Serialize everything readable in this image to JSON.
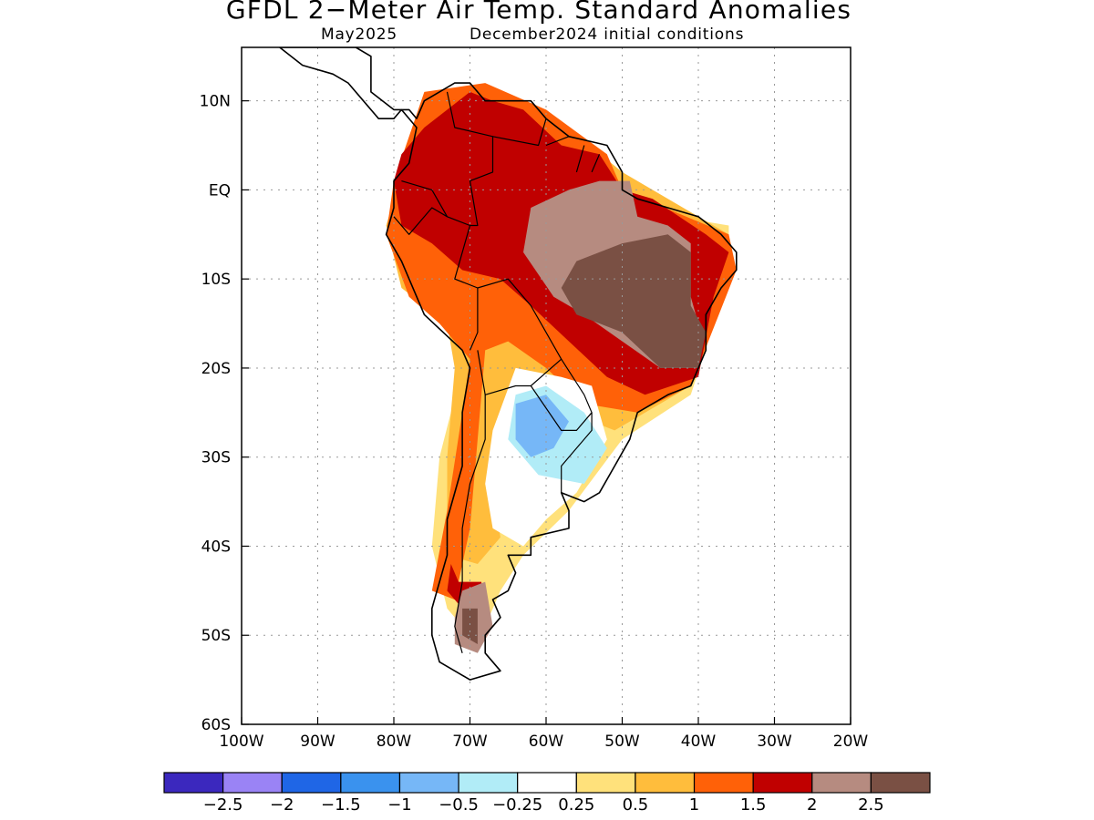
{
  "title": "GFDL 2−Meter Air Temp. Standard Anomalies",
  "subtitle_date": "May2025",
  "subtitle_ic": "December2024 initial conditions",
  "lon_ticks": [
    "100W",
    "90W",
    "80W",
    "70W",
    "60W",
    "50W",
    "40W",
    "30W",
    "20W"
  ],
  "lat_ticks": [
    "10N",
    "EQ",
    "10S",
    "20S",
    "30S",
    "40S",
    "50S",
    "60S"
  ],
  "colorbar": {
    "colors": [
      "#3b28be",
      "#9a83f5",
      "#1f66e6",
      "#3a92ee",
      "#76b7f7",
      "#b1ecf7",
      "#ffffff",
      "#ffe17b",
      "#ffbd3c",
      "#ff6108",
      "#c00000",
      "#b68b80",
      "#7a5044"
    ],
    "labels": [
      "−2.5",
      "−2",
      "−1.5",
      "−1",
      "−0.5",
      "−0.25",
      "0.25",
      "0.5",
      "1",
      "1.5",
      "2",
      "2.5"
    ]
  },
  "map": {
    "extent": {
      "lon_min": -100,
      "lon_max": -20,
      "lat_min": -60,
      "lat_max": 16
    },
    "anomaly_regions": [
      {
        "level": "0.5",
        "color": "#ffe17b",
        "points": [
          [
            -75,
            5
          ],
          [
            -60,
            8
          ],
          [
            -52,
            4
          ],
          [
            -50,
            -2
          ],
          [
            -36,
            -4
          ],
          [
            -36,
            -10
          ],
          [
            -41,
            -23
          ],
          [
            -50,
            -28
          ],
          [
            -57,
            -36
          ],
          [
            -63,
            -41
          ],
          [
            -66,
            -45
          ],
          [
            -69,
            -51
          ],
          [
            -73,
            -47
          ],
          [
            -75,
            -40
          ],
          [
            -74,
            -30
          ],
          [
            -71,
            -20
          ],
          [
            -73,
            -14
          ],
          [
            -78,
            -12
          ],
          [
            -81,
            -5
          ]
        ]
      },
      {
        "level": "1",
        "color": "#ffbd3c",
        "points": [
          [
            -76,
            9
          ],
          [
            -60,
            9
          ],
          [
            -50,
            2
          ],
          [
            -36,
            -5
          ],
          [
            -36,
            -10
          ],
          [
            -41,
            -22
          ],
          [
            -51,
            -27
          ],
          [
            -57,
            -25
          ],
          [
            -63,
            -22
          ],
          [
            -66,
            -28
          ],
          [
            -67,
            -34
          ],
          [
            -66,
            -39
          ],
          [
            -69,
            -42
          ],
          [
            -73,
            -41
          ],
          [
            -73,
            -30
          ],
          [
            -72,
            -20
          ],
          [
            -73,
            -15
          ],
          [
            -79,
            -11
          ],
          [
            -81,
            -4
          ],
          [
            -79,
            2
          ]
        ]
      },
      {
        "level": "1.5",
        "color": "#ff6108",
        "points": [
          [
            -76,
            11
          ],
          [
            -68,
            12
          ],
          [
            -60,
            9
          ],
          [
            -52,
            4
          ],
          [
            -50,
            0
          ],
          [
            -36,
            -5
          ],
          [
            -35,
            -9
          ],
          [
            -41,
            -22
          ],
          [
            -48,
            -25
          ],
          [
            -55,
            -24
          ],
          [
            -60,
            -20
          ],
          [
            -65,
            -17
          ],
          [
            -68,
            -18
          ],
          [
            -69,
            -28
          ],
          [
            -70,
            -38
          ],
          [
            -72,
            -46
          ],
          [
            -75,
            -45
          ],
          [
            -73,
            -36
          ],
          [
            -71,
            -25
          ],
          [
            -70,
            -19
          ],
          [
            -74,
            -15
          ],
          [
            -78,
            -12
          ],
          [
            -81,
            -5
          ],
          [
            -80,
            1
          ]
        ]
      },
      {
        "level": "2",
        "color": "#c00000",
        "points": [
          [
            -76,
            7
          ],
          [
            -70,
            11
          ],
          [
            -67,
            10
          ],
          [
            -63,
            9
          ],
          [
            -58,
            5
          ],
          [
            -53,
            4
          ],
          [
            -50,
            0
          ],
          [
            -46,
            -1
          ],
          [
            -39,
            -5
          ],
          [
            -36,
            -7
          ],
          [
            -38,
            -12
          ],
          [
            -40,
            -21
          ],
          [
            -47,
            -23
          ],
          [
            -52,
            -21
          ],
          [
            -57,
            -17
          ],
          [
            -62,
            -13
          ],
          [
            -66,
            -10
          ],
          [
            -71,
            -9
          ],
          [
            -75,
            -6
          ],
          [
            -79,
            -4
          ],
          [
            -80,
            1
          ],
          [
            -79,
            4
          ]
        ]
      },
      {
        "level": "2",
        "color": "#c00000",
        "points": [
          [
            -72.5,
            -42
          ],
          [
            -71.5,
            -44
          ],
          [
            -68.5,
            -44
          ],
          [
            -68,
            -47
          ],
          [
            -71,
            -47
          ],
          [
            -73,
            -45
          ]
        ]
      },
      {
        "level": "2.5",
        "color": "#b68b80",
        "points": [
          [
            -62,
            -2
          ],
          [
            -57,
            0
          ],
          [
            -53,
            1
          ],
          [
            -49,
            1
          ],
          [
            -48,
            -3
          ],
          [
            -44,
            -4
          ],
          [
            -41,
            -6
          ],
          [
            -41,
            -12
          ],
          [
            -40,
            -15
          ],
          [
            -40,
            -20
          ],
          [
            -45,
            -20
          ],
          [
            -50,
            -17
          ],
          [
            -55,
            -14
          ],
          [
            -59,
            -12
          ],
          [
            -63,
            -7
          ]
        ]
      },
      {
        "level": "2.5",
        "color": "#b68b80",
        "points": [
          [
            -71,
            -45
          ],
          [
            -68,
            -44
          ],
          [
            -67,
            -49
          ],
          [
            -69,
            -52
          ],
          [
            -72,
            -51
          ],
          [
            -72,
            -48
          ]
        ]
      },
      {
        "level": ">2.5",
        "color": "#7a5044",
        "points": [
          [
            -56,
            -8
          ],
          [
            -50,
            -6
          ],
          [
            -44,
            -5
          ],
          [
            -41,
            -7
          ],
          [
            -41,
            -13
          ],
          [
            -39,
            -16
          ],
          [
            -40,
            -20
          ],
          [
            -45,
            -20
          ],
          [
            -50,
            -16
          ],
          [
            -56,
            -14
          ],
          [
            -58,
            -11
          ]
        ]
      },
      {
        "level": ">2.5",
        "color": "#7a5044",
        "points": [
          [
            -71,
            -47
          ],
          [
            -69,
            -47
          ],
          [
            -69,
            -51
          ],
          [
            -71,
            -50
          ]
        ]
      },
      {
        "level": "-0.25",
        "color": "#ffffff",
        "points": [
          [
            -64,
            -20
          ],
          [
            -58,
            -21
          ],
          [
            -54,
            -22
          ],
          [
            -52,
            -28
          ],
          [
            -56,
            -34
          ],
          [
            -60,
            -37
          ],
          [
            -63,
            -40
          ],
          [
            -67,
            -38
          ],
          [
            -68,
            -33
          ],
          [
            -67,
            -27
          ]
        ]
      },
      {
        "level": "-0.5",
        "color": "#b1ecf7",
        "points": [
          [
            -64,
            -23
          ],
          [
            -60,
            -22
          ],
          [
            -55,
            -25
          ],
          [
            -52,
            -29
          ],
          [
            -55,
            -33
          ],
          [
            -61,
            -32
          ],
          [
            -65,
            -28
          ]
        ]
      },
      {
        "level": "-1",
        "color": "#76b7f7",
        "points": [
          [
            -64,
            -24
          ],
          [
            -60,
            -23
          ],
          [
            -57,
            -26
          ],
          [
            -59,
            -29
          ],
          [
            -62,
            -30
          ],
          [
            -64,
            -28
          ]
        ]
      }
    ],
    "coastline": [
      [
        -88,
        16
      ],
      [
        -85,
        16
      ],
      [
        -83,
        15
      ],
      [
        -83,
        11
      ],
      [
        -80,
        9
      ],
      [
        -78,
        9
      ],
      [
        -77,
        8
      ],
      [
        -76,
        10
      ],
      [
        -72,
        12
      ],
      [
        -70,
        12
      ],
      [
        -68,
        10
      ],
      [
        -64,
        10
      ],
      [
        -62,
        10
      ],
      [
        -60,
        8
      ],
      [
        -57,
        6
      ],
      [
        -52,
        5
      ],
      [
        -50,
        2
      ],
      [
        -50,
        0
      ],
      [
        -48,
        -1
      ],
      [
        -44,
        -2
      ],
      [
        -40,
        -3
      ],
      [
        -37,
        -5
      ],
      [
        -35,
        -7
      ],
      [
        -35,
        -9
      ],
      [
        -37,
        -11
      ],
      [
        -39,
        -14
      ],
      [
        -39,
        -18
      ],
      [
        -41,
        -22
      ],
      [
        -44,
        -23
      ],
      [
        -48,
        -25
      ],
      [
        -49,
        -28
      ],
      [
        -51,
        -31
      ],
      [
        -53,
        -34
      ],
      [
        -55,
        -35
      ],
      [
        -58,
        -34
      ],
      [
        -57,
        -36
      ],
      [
        -57,
        -38
      ],
      [
        -62,
        -39
      ],
      [
        -62,
        -41
      ],
      [
        -65,
        -41
      ],
      [
        -64,
        -43
      ],
      [
        -65,
        -45
      ],
      [
        -67,
        -46
      ],
      [
        -66,
        -48
      ],
      [
        -68,
        -50
      ],
      [
        -68,
        -52
      ],
      [
        -66,
        -54
      ],
      [
        -70,
        -55
      ],
      [
        -74,
        -53
      ],
      [
        -75,
        -50
      ],
      [
        -75,
        -47
      ],
      [
        -74,
        -44
      ],
      [
        -73,
        -41
      ],
      [
        -73,
        -37
      ],
      [
        -71,
        -31
      ],
      [
        -71,
        -25
      ],
      [
        -70,
        -20
      ],
      [
        -71,
        -18
      ],
      [
        -76,
        -14
      ],
      [
        -79,
        -8
      ],
      [
        -81,
        -5
      ],
      [
        -80,
        -2
      ],
      [
        -80,
        1
      ],
      [
        -78,
        3
      ],
      [
        -77,
        7
      ],
      [
        -79,
        9
      ],
      [
        -80,
        8
      ],
      [
        -82,
        8
      ],
      [
        -84,
        10
      ],
      [
        -86,
        12
      ],
      [
        -88,
        13
      ],
      [
        -92,
        14
      ],
      [
        -95,
        16
      ]
    ],
    "borders": [
      [
        [
          -73,
          11
        ],
        [
          -72,
          7
        ],
        [
          -67,
          6
        ],
        [
          -67,
          2
        ],
        [
          -70,
          1
        ],
        [
          -69,
          -4
        ],
        [
          -70,
          -4
        ],
        [
          -73,
          -3
        ],
        [
          -75,
          0
        ],
        [
          -79,
          1
        ]
      ],
      [
        [
          -80,
          -3
        ],
        [
          -78,
          -5
        ],
        [
          -75,
          -2
        ],
        [
          -73,
          -3
        ]
      ],
      [
        [
          -70,
          -4
        ],
        [
          -72,
          -10
        ],
        [
          -69,
          -11
        ],
        [
          -69,
          -16
        ],
        [
          -70,
          -18
        ]
      ],
      [
        [
          -67,
          6
        ],
        [
          -61,
          5
        ],
        [
          -60,
          8
        ]
      ],
      [
        [
          -60,
          5
        ],
        [
          -57,
          6
        ]
      ],
      [
        [
          -56,
          2
        ],
        [
          -55,
          5
        ]
      ],
      [
        [
          -54,
          2
        ],
        [
          -53,
          4
        ]
      ],
      [
        [
          -69,
          -11
        ],
        [
          -65,
          -10
        ],
        [
          -62,
          -13
        ],
        [
          -60,
          -16
        ],
        [
          -58,
          -19
        ],
        [
          -62,
          -22
        ],
        [
          -64,
          -22
        ],
        [
          -68,
          -23
        ],
        [
          -69,
          -18
        ]
      ],
      [
        [
          -58,
          -19
        ],
        [
          -55,
          -23
        ],
        [
          -54,
          -25
        ],
        [
          -56,
          -27
        ],
        [
          -58,
          -27
        ],
        [
          -62,
          -22
        ]
      ],
      [
        [
          -54,
          -25
        ],
        [
          -54,
          -27
        ],
        [
          -56,
          -29
        ],
        [
          -58,
          -31
        ],
        [
          -58,
          -34
        ]
      ],
      [
        [
          -68,
          -23
        ],
        [
          -68,
          -28
        ],
        [
          -70,
          -33
        ],
        [
          -71,
          -38
        ],
        [
          -71,
          -44
        ],
        [
          -72,
          -49
        ],
        [
          -71,
          -52
        ]
      ]
    ]
  }
}
